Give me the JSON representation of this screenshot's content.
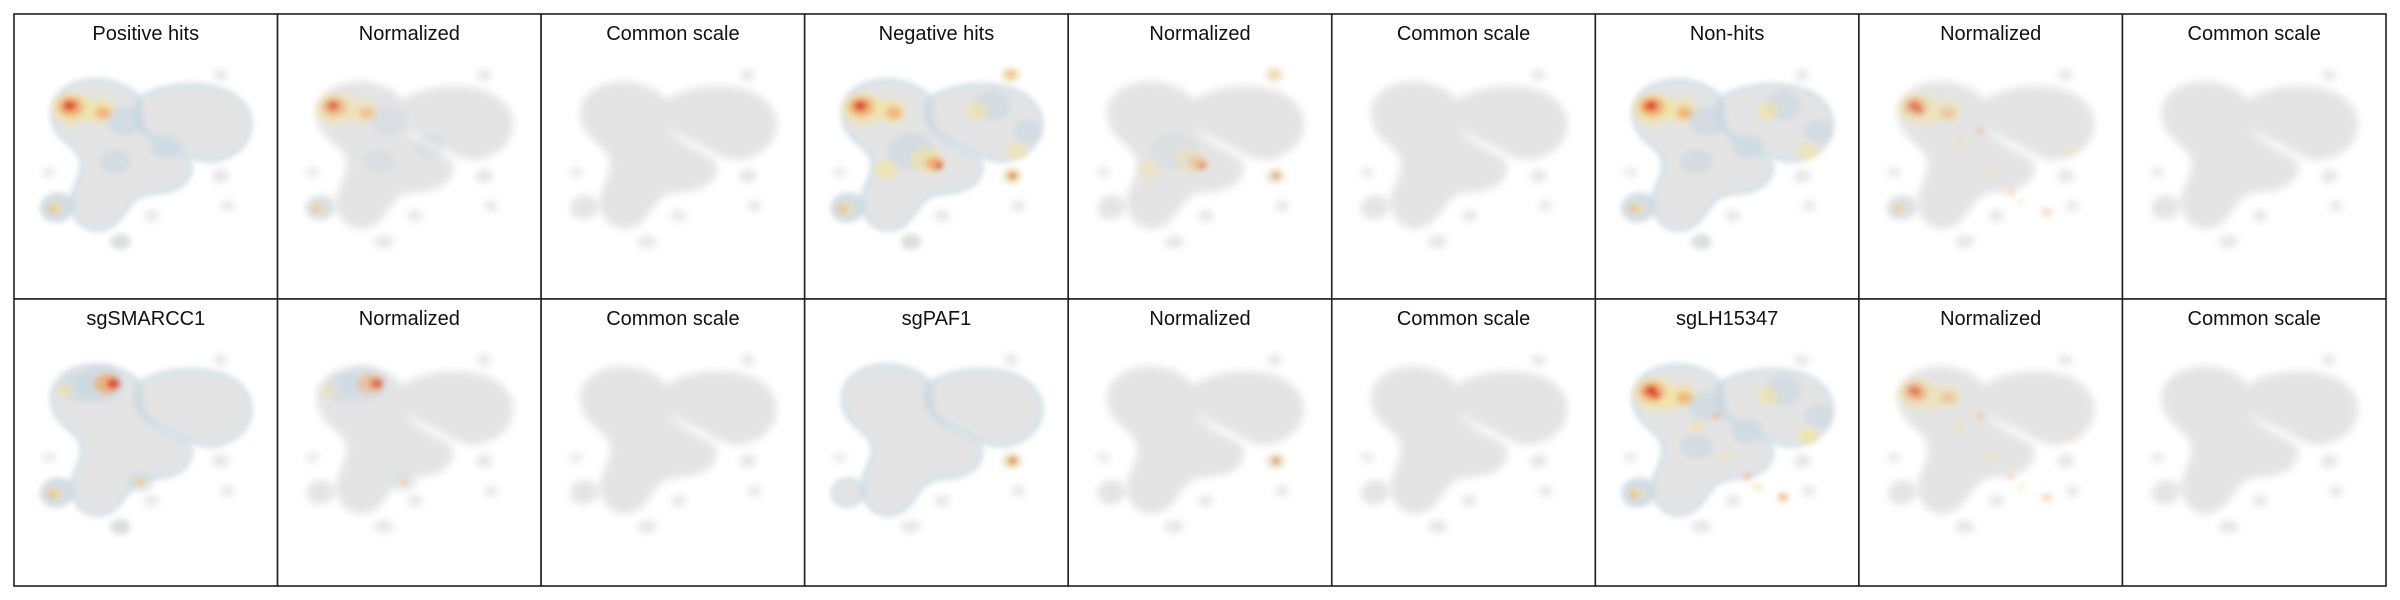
{
  "figure": {
    "rows": [
      {
        "panels": [
          {
            "title": "Positive hits",
            "mode": "raw",
            "intensity": 1.0,
            "spots": [
              "tl-dense",
              "upper-arm",
              "cluster-left",
              "bottom-small"
            ]
          },
          {
            "title": "Normalized",
            "mode": "normalized",
            "intensity": 0.7,
            "spots": [
              "tl-dense",
              "upper-arm",
              "cluster-left"
            ]
          },
          {
            "title": "Common scale",
            "mode": "common",
            "intensity": 0.0,
            "spots": []
          },
          {
            "title": "Negative hits",
            "mode": "raw",
            "intensity": 1.0,
            "spots": [
              "tl-dense",
              "center",
              "right-loop",
              "cluster-left",
              "bottom-small",
              "top-right-dot",
              "right-small"
            ]
          },
          {
            "title": "Normalized",
            "mode": "normalized",
            "intensity": 0.6,
            "spots": [
              "top-right-dot",
              "center",
              "right-small"
            ]
          },
          {
            "title": "Common scale",
            "mode": "common",
            "intensity": 0.0,
            "spots": []
          },
          {
            "title": "Non-hits",
            "mode": "raw",
            "intensity": 1.0,
            "spots": [
              "tl-dense",
              "upper-arm",
              "right-loop",
              "cluster-left",
              "bottom-small"
            ]
          },
          {
            "title": "Normalized",
            "mode": "normalized",
            "intensity": 0.6,
            "spots": [
              "tl-dense",
              "cluster-left",
              "scatter"
            ]
          },
          {
            "title": "Common scale",
            "mode": "common",
            "intensity": 0.0,
            "spots": []
          }
        ]
      },
      {
        "panels": [
          {
            "title": "sgSMARCC1",
            "mode": "raw",
            "intensity": 1.0,
            "spots": [
              "top-band",
              "mid-right",
              "cluster-left",
              "bottom-small"
            ]
          },
          {
            "title": "Normalized",
            "mode": "normalized",
            "intensity": 0.7,
            "spots": [
              "top-band",
              "mid-right"
            ]
          },
          {
            "title": "Common scale",
            "mode": "common",
            "intensity": 0.0,
            "spots": []
          },
          {
            "title": "sgPAF1",
            "mode": "raw",
            "intensity": 1.0,
            "spots": [
              "right-small"
            ]
          },
          {
            "title": "Normalized",
            "mode": "normalized",
            "intensity": 0.7,
            "spots": [
              "right-small"
            ]
          },
          {
            "title": "Common scale",
            "mode": "common",
            "intensity": 0.0,
            "spots": []
          },
          {
            "title": "sgLH15347",
            "mode": "raw",
            "intensity": 1.0,
            "spots": [
              "tl-dense",
              "upper-arm",
              "right-loop",
              "cluster-left",
              "scatter"
            ]
          },
          {
            "title": "Normalized",
            "mode": "normalized",
            "intensity": 0.6,
            "spots": [
              "scatter",
              "tl-dense"
            ]
          },
          {
            "title": "Common scale",
            "mode": "common",
            "intensity": 0.0,
            "spots": []
          }
        ]
      }
    ],
    "colors": {
      "background_shape": "#e3e3e3",
      "low_density": "#c5d6e0",
      "mid_density": "#f3e3a0",
      "high_density": "#f2a766",
      "peak_density": "#d7301f",
      "border": "#222222"
    }
  }
}
